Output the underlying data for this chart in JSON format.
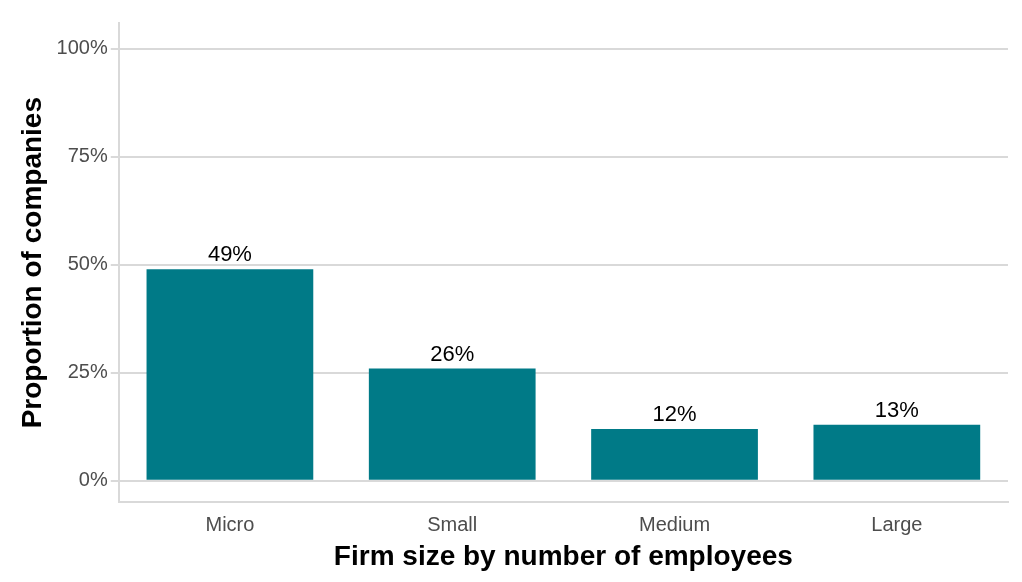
{
  "chart_data": {
    "type": "bar",
    "xlabel": "Firm size by number of employees",
    "ylabel": "Proportion of companies",
    "categories": [
      "Micro",
      "Small",
      "Medium",
      "Large"
    ],
    "values": [
      49,
      26,
      12,
      13
    ],
    "value_labels": [
      "49%",
      "26%",
      "12%",
      "13%"
    ],
    "color": "#007a87",
    "ylim": [
      -5,
      106
    ],
    "yticks": [
      {
        "value": 0,
        "label": "0%"
      },
      {
        "value": 25,
        "label": "25%"
      },
      {
        "value": 50,
        "label": "50%"
      },
      {
        "value": 75,
        "label": "75%"
      },
      {
        "value": 100,
        "label": "100%"
      }
    ],
    "grid": "y",
    "legend": false
  }
}
